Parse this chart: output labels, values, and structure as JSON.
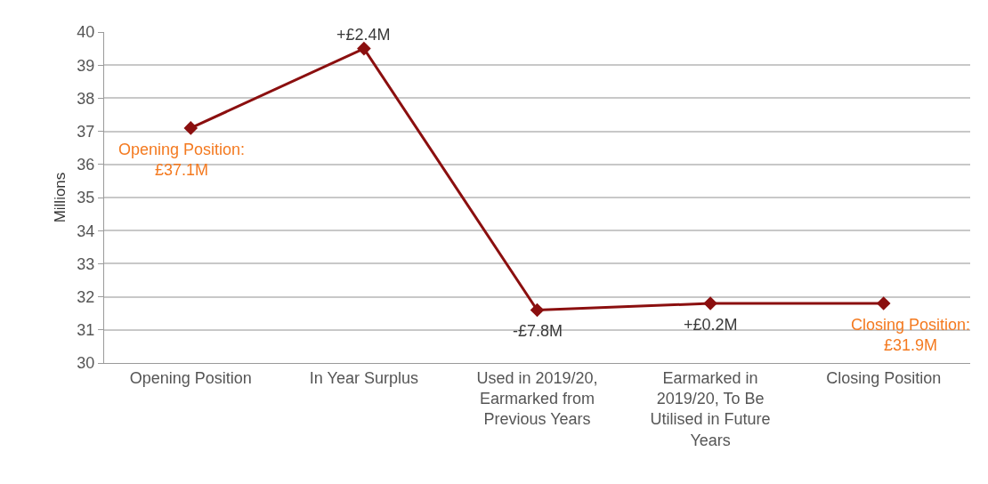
{
  "chart_data": {
    "type": "line",
    "ylabel": "Millions",
    "categories": [
      "Opening Position",
      "In Year Surplus",
      "Used in 2019/20,\nEarmarked from\nPrevious Years",
      "Earmarked in\n2019/20, To Be\nUtilised in Future\nYears",
      "Closing Position"
    ],
    "values": [
      37.1,
      39.5,
      31.6,
      31.8,
      31.8
    ],
    "color": "#8b0f0f",
    "marker": "diamond",
    "line_style": "solid",
    "ylim": [
      30,
      40
    ],
    "yticks": [
      30,
      31,
      32,
      33,
      34,
      35,
      36,
      37,
      38,
      39,
      40
    ],
    "grid": "y",
    "legend": false,
    "annotations": [
      {
        "text": "Opening Position:\n£37.1M",
        "x": "Opening Position",
        "y": 37.1
      },
      {
        "text": "+£2.4M",
        "x": "In Year Surplus",
        "y": 39.5
      },
      {
        "text": "-£7.8M",
        "x": "Used in 2019/20,\nEarmarked from\nPrevious Years",
        "y": 31.6
      },
      {
        "text": "+£0.2M",
        "x": "Earmarked in\n2019/20, To Be\nUtilised in Future\nYears",
        "y": 31.8
      },
      {
        "text": "Closing Position:\n£31.9M",
        "x": "Closing Position",
        "y": 31.8
      }
    ]
  }
}
